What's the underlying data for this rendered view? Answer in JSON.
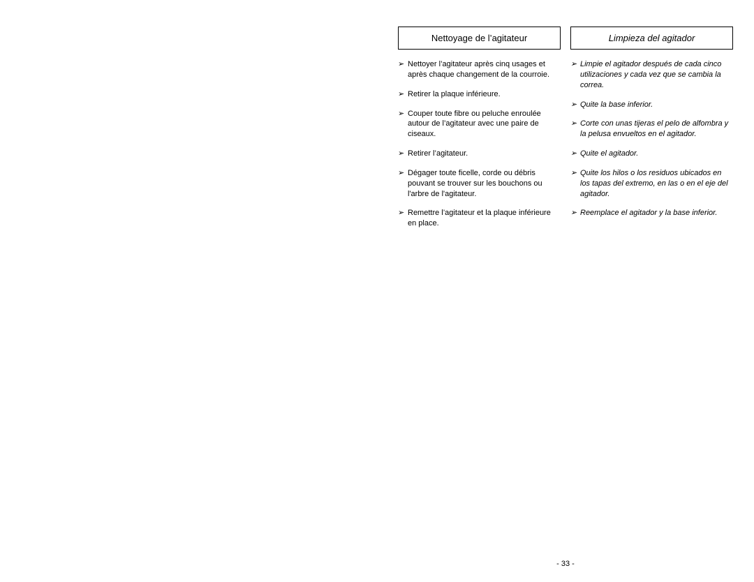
{
  "left": {
    "title": "Nettoyage de l’agitateur",
    "items": [
      "Nettoyer l’agitateur après cinq usages et après chaque changement de la courroie.",
      "Retirer la plaque inférieure.",
      "Couper toute fibre ou peluche enroulée autour de l’agitateur avec une paire de ciseaux.",
      "Retirer l’agitateur.",
      "Dégager toute ficelle, corde ou débris pouvant se trouver sur les bouchons ou l'arbre de l'agitateur.",
      "Remettre l’agitateur et la plaque inférieure en place."
    ]
  },
  "right": {
    "title": "Limpieza del agitador",
    "items": [
      "Limpie el agitador después de cada cinco utilizaciones y cada vez que se cambia la correa.",
      "Quite la base inferior.",
      "Corte con unas tijeras el pelo de alfombra y la pelusa envueltos en el agitador.",
      "Quite el agitador.",
      "Quite los hilos o los residuos ubicados en los tapas del extremo, en las  o en el eje del agitador.",
      "Reemplace el agitador y la base inferior."
    ]
  },
  "page_number": "- 33 -",
  "arrow_glyph": "➢"
}
